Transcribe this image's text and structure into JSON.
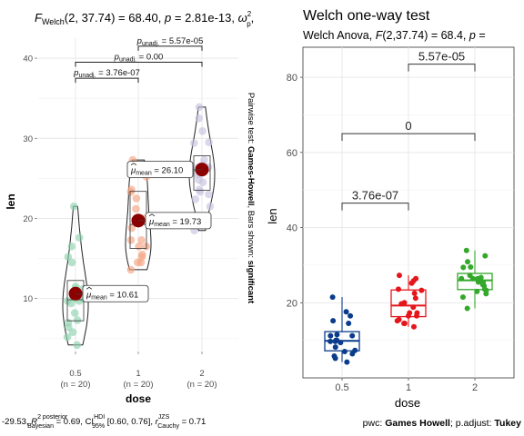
{
  "left": {
    "title_stat": "F",
    "title_stat_sub": "Welch",
    "title_args": "(2, 37.74) = 68.40, ",
    "title_p_label": "p",
    "title_p_value": " = 2.81e-13, ",
    "title_omega": "ω",
    "title_omega_sup": "2",
    "title_omega_sub": "p",
    "title_trail": ",",
    "side_caption_prefix": "Pairwise test: ",
    "side_caption_test": "Games-Howell",
    "side_caption_mid": ", Bars shown: ",
    "side_caption_bars": "significant",
    "bottom_caption_prefix": "-29.53, ",
    "bottom_caption_r": "R",
    "bottom_caption_r_sup": "2 posterior",
    "bottom_caption_r_sub": "Bayesian",
    "bottom_caption_ci_value": " = 0.69, CI",
    "bottom_caption_ci_sup": "HDI",
    "bottom_caption_ci_sub": "95%",
    "bottom_caption_ci_range": " [0.60, 0.76], ",
    "bottom_caption_jzs_r": "r",
    "bottom_caption_jzs_sup": "JZS",
    "bottom_caption_jzs_sub": "Cauchy",
    "bottom_caption_jzs_value": " = 0.71"
  },
  "right": {
    "title": "Welch one-way test",
    "subtitle_prefix": "Welch Anova, ",
    "subtitle_F": "F",
    "subtitle_args": "(2,37.74) = 68.4, ",
    "subtitle_p": "p",
    "subtitle_tail": " =",
    "caption_pwc": "pwc: ",
    "caption_test": "Games Howell",
    "caption_mid": "; p.adjust: ",
    "caption_adjust": "Tukey"
  },
  "chart_data": [
    {
      "type": "violin",
      "xlabel": "dose",
      "ylabel": "len",
      "categories": [
        "0.5",
        "1",
        "2"
      ],
      "category_counts": [
        "(n = 20)",
        "(n = 20)",
        "(n = 20)"
      ],
      "yticks": [
        10,
        20,
        30,
        40
      ],
      "ylim": [
        3.5,
        42.5
      ],
      "grid": true,
      "colors": [
        "#8fd3b1",
        "#f4a582",
        "#c8c3e0"
      ],
      "mean_color": "#8b0000",
      "means": [
        {
          "category": "0.5",
          "value": 10.61,
          "label": "10.61"
        },
        {
          "category": "1",
          "value": 19.73,
          "label": "19.73"
        },
        {
          "category": "2",
          "value": 26.1,
          "label": "26.10"
        }
      ],
      "mean_label_prefix": "μ",
      "mean_label_sub": "mean",
      "points": [
        {
          "category": "0.5",
          "values": [
            4.2,
            11.5,
            7.3,
            5.8,
            6.4,
            10.0,
            11.2,
            11.2,
            5.2,
            7.0,
            15.2,
            21.5,
            17.6,
            9.7,
            14.5,
            10.0,
            8.2,
            9.4,
            16.5,
            9.7
          ]
        },
        {
          "category": "1",
          "values": [
            16.5,
            16.5,
            15.2,
            17.3,
            22.5,
            17.3,
            13.6,
            14.5,
            18.8,
            15.5,
            19.7,
            23.3,
            23.6,
            26.4,
            20.0,
            25.2,
            25.8,
            21.2,
            14.5,
            27.3
          ]
        },
        {
          "category": "2",
          "values": [
            23.6,
            18.5,
            33.9,
            25.5,
            26.4,
            32.5,
            26.7,
            21.5,
            23.3,
            29.5,
            25.5,
            26.4,
            22.4,
            24.5,
            24.8,
            30.9,
            26.4,
            27.3,
            29.4,
            23.0
          ]
        }
      ],
      "comparisons": [
        {
          "from": "0.5",
          "to": "1",
          "label": "3.76e-07",
          "label_prefix": "p",
          "label_sub": "unadj."
        },
        {
          "from": "0.5",
          "to": "2",
          "label": "0.00",
          "label_prefix": "p",
          "label_sub": "unadj."
        },
        {
          "from": "1",
          "to": "2",
          "label": "5.57e-05",
          "label_prefix": "p",
          "label_sub": "unadj."
        }
      ]
    },
    {
      "type": "box",
      "xlabel": "dose",
      "ylabel": "len",
      "categories": [
        "0.5",
        "1",
        "2"
      ],
      "yticks": [
        20,
        40,
        60,
        80
      ],
      "ylim": [
        0,
        88
      ],
      "grid": true,
      "colors": [
        "#0b3c8c",
        "#e4161c",
        "#34a82b"
      ],
      "boxes": [
        {
          "category": "0.5",
          "min": 4.2,
          "q1": 7.2,
          "median": 9.85,
          "q3": 12.3,
          "max": 21.5
        },
        {
          "category": "1",
          "min": 13.6,
          "q1": 16.3,
          "median": 19.25,
          "q3": 23.4,
          "max": 27.3
        },
        {
          "category": "2",
          "min": 18.5,
          "q1": 23.5,
          "median": 25.95,
          "q3": 27.8,
          "max": 33.9
        }
      ],
      "points": [
        {
          "category": "0.5",
          "values": [
            4.2,
            11.5,
            7.3,
            5.8,
            6.4,
            10.0,
            11.2,
            11.2,
            5.2,
            7.0,
            15.2,
            21.5,
            17.6,
            9.7,
            14.5,
            10.0,
            8.2,
            9.4,
            16.5,
            9.7
          ]
        },
        {
          "category": "1",
          "values": [
            16.5,
            16.5,
            15.2,
            17.3,
            22.5,
            17.3,
            13.6,
            14.5,
            18.8,
            15.5,
            19.7,
            23.3,
            23.6,
            26.4,
            20.0,
            25.2,
            25.8,
            21.2,
            14.5,
            27.3
          ]
        },
        {
          "category": "2",
          "values": [
            23.6,
            18.5,
            33.9,
            25.5,
            26.4,
            32.5,
            26.7,
            21.5,
            23.3,
            29.5,
            25.5,
            26.4,
            22.4,
            24.5,
            24.8,
            30.9,
            26.4,
            27.3,
            29.4,
            23.0
          ]
        }
      ],
      "comparisons": [
        {
          "from": "0.5",
          "to": "1",
          "label": "3.76e-07"
        },
        {
          "from": "0.5",
          "to": "2",
          "label": "0"
        },
        {
          "from": "1",
          "to": "2",
          "label": "5.57e-05"
        }
      ]
    }
  ]
}
